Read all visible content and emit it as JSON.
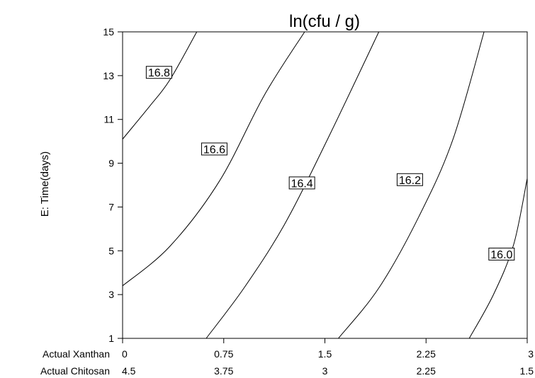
{
  "chart_data": {
    "type": "contour",
    "title": "ln(cfu / g)",
    "ylabel": "E: Time(days)",
    "x_rows": [
      {
        "label": "Actual Xanthan",
        "ticks": [
          "0",
          "0.75",
          "1.5",
          "2.25",
          "3"
        ]
      },
      {
        "label": "Actual Chitosan",
        "ticks": [
          "4.5",
          "3.75",
          "3",
          "2.25",
          "1.5"
        ]
      }
    ],
    "xlim": [
      0,
      3
    ],
    "y_ticks": [
      1,
      3,
      5,
      7,
      9,
      11,
      13,
      15
    ],
    "ylim": [
      1,
      15
    ],
    "grid": false,
    "contours": [
      {
        "label": "16.8",
        "points": [
          [
            0,
            10.1
          ],
          [
            0.2,
            11.6
          ],
          [
            0.35,
            12.8
          ],
          [
            0.55,
            15
          ]
        ]
      },
      {
        "label": "16.6",
        "points": [
          [
            0,
            3.4
          ],
          [
            0.35,
            5.2
          ],
          [
            0.72,
            8.2
          ],
          [
            1.05,
            12.1
          ],
          [
            1.35,
            15
          ]
        ]
      },
      {
        "label": "16.4",
        "points": [
          [
            0.62,
            1
          ],
          [
            0.9,
            3.3
          ],
          [
            1.2,
            6.2
          ],
          [
            1.52,
            10.1
          ],
          [
            1.9,
            15
          ]
        ]
      },
      {
        "label": "16.2",
        "points": [
          [
            1.6,
            1
          ],
          [
            1.9,
            3.3
          ],
          [
            2.2,
            6.6
          ],
          [
            2.45,
            10.1
          ],
          [
            2.68,
            15
          ]
        ]
      },
      {
        "label": "16.0",
        "points": [
          [
            2.57,
            1
          ],
          [
            2.75,
            3.0
          ],
          [
            2.9,
            5.3
          ],
          [
            3.0,
            8.3
          ]
        ]
      }
    ]
  }
}
